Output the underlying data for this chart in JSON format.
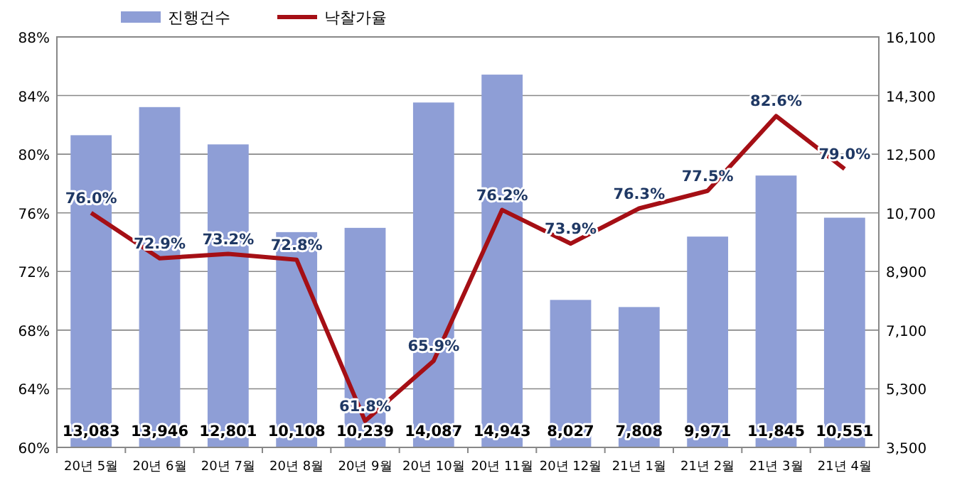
{
  "chart_data": {
    "type": "bar",
    "categories": [
      "20년 5월",
      "20년 6월",
      "20년 7월",
      "20년 8월",
      "20년 9월",
      "20년 10월",
      "20년 11월",
      "20년 12월",
      "21년 1월",
      "21년 2월",
      "21년 3월",
      "21년 4월"
    ],
    "series": [
      {
        "name": "진행건수",
        "axis": "y2",
        "color": "#8e9ed6",
        "values": [
          13083,
          13946,
          12801,
          10108,
          10239,
          14087,
          14943,
          8027,
          7808,
          9971,
          11845,
          10551
        ],
        "value_labels": [
          "13,083",
          "13,946",
          "12,801",
          "10,108",
          "10,239",
          "14,087",
          "14,943",
          "8,027",
          "7,808",
          "9,971",
          "11,845",
          "10,551"
        ]
      },
      {
        "name": "낙찰가율",
        "type": "line",
        "color": "#a50f15",
        "values": [
          76.0,
          72.9,
          73.2,
          72.8,
          61.8,
          65.9,
          76.2,
          73.9,
          76.3,
          77.5,
          82.6,
          79.0
        ],
        "value_labels": [
          "76.0%",
          "72.9%",
          "73.2%",
          "72.8%",
          "61.8%",
          "65.9%",
          "76.2%",
          "73.9%",
          "76.3%",
          "77.5%",
          "82.6%",
          "79.0%"
        ]
      }
    ],
    "ylim": [
      60,
      88
    ],
    "yticks": [
      {
        "value": 60,
        "label": "60%"
      },
      {
        "value": 64,
        "label": "64%"
      },
      {
        "value": 68,
        "label": "68%"
      },
      {
        "value": 72,
        "label": "72%"
      },
      {
        "value": 76,
        "label": "76%"
      },
      {
        "value": 80,
        "label": "80%"
      },
      {
        "value": 84,
        "label": "84%"
      },
      {
        "value": 88,
        "label": "88%"
      }
    ],
    "y2lim": [
      3500,
      16100
    ],
    "y2ticks": [
      {
        "value": 3500,
        "label": "3,500"
      },
      {
        "value": 5300,
        "label": "5,300"
      },
      {
        "value": 7100,
        "label": "7,100"
      },
      {
        "value": 8900,
        "label": "8,900"
      },
      {
        "value": 10700,
        "label": "10,700"
      },
      {
        "value": 12500,
        "label": "12,500"
      },
      {
        "value": 14300,
        "label": "14,300"
      },
      {
        "value": 16100,
        "label": "16,100"
      }
    ],
    "grid": "y",
    "legend": "top left"
  }
}
